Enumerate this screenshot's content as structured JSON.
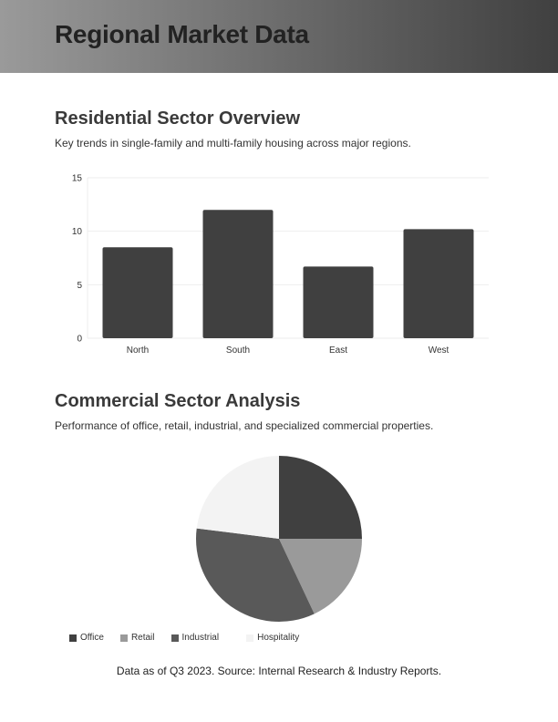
{
  "header": {
    "title": "Regional Market Data"
  },
  "residential": {
    "title": "Residential Sector Overview",
    "description": "Key trends in single-family and multi-family housing across major regions."
  },
  "commercial": {
    "title": "Commercial Sector Analysis",
    "description": "Performance of office, retail, industrial, and specialized commercial properties."
  },
  "footer": {
    "note": "Data as of Q3 2023. Source: Internal Research & Industry Reports."
  },
  "colors": {
    "bar": "#404040",
    "office": "#404040",
    "retail": "#9a9a9a",
    "industrial": "#595959",
    "hospitality": "#f3f3f3",
    "grid": "#eeeeee"
  },
  "chart_data": [
    {
      "type": "bar",
      "title": "Residential Sector Overview",
      "categories": [
        "North",
        "South",
        "East",
        "West"
      ],
      "values": [
        8.5,
        12,
        6.7,
        10.2
      ],
      "xlabel": "",
      "ylabel": "",
      "ylim": [
        0,
        15
      ],
      "yticks": [
        0,
        5,
        10,
        15
      ],
      "grid": true,
      "legend": false
    },
    {
      "type": "pie",
      "title": "Commercial Sector Analysis",
      "labels": [
        "Office",
        "Retail",
        "Industrial",
        "Hospitality"
      ],
      "values": [
        25,
        18,
        34,
        23
      ],
      "legend_position": "bottom"
    }
  ]
}
